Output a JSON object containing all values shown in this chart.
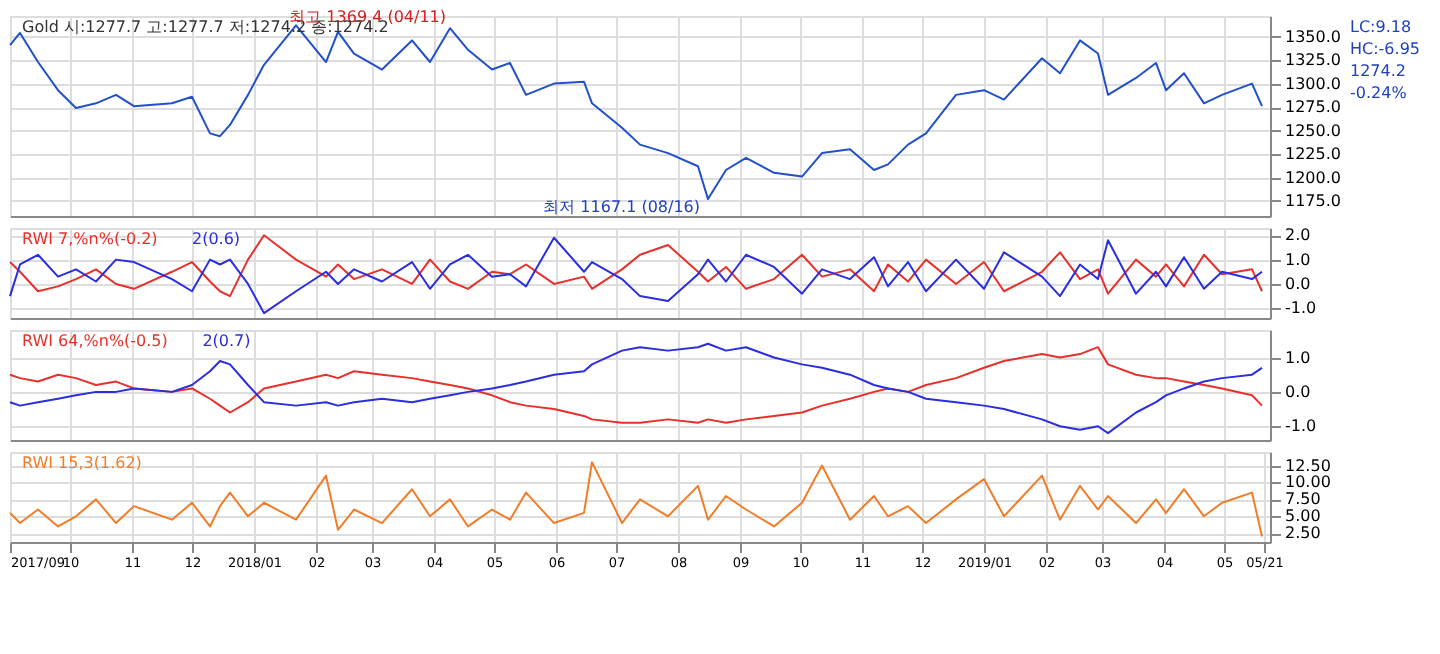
{
  "chart_data": [
    {
      "type": "line",
      "title": "Gold 시:1277.7 고:1277.7 저:1274.2 종:1274.2",
      "grid": true,
      "tick_labels": "y",
      "x": [
        "2017-09-01",
        "2017-09-06",
        "2017-09-15",
        "2017-09-25",
        "2017-10-04",
        "2017-10-14",
        "2017-10-24",
        "2017-11-02",
        "2017-11-21",
        "2017-12-01",
        "2017-12-10",
        "2017-12-15",
        "2017-12-20",
        "2017-12-29",
        "2018-01-06",
        "2018-01-22",
        "2018-02-06",
        "2018-02-12",
        "2018-02-20",
        "2018-03-06",
        "2018-03-21",
        "2018-03-30",
        "2018-04-09",
        "2018-04-18",
        "2018-04-30",
        "2018-05-09",
        "2018-05-17",
        "2018-05-31",
        "2018-06-15",
        "2018-06-19",
        "2018-07-04",
        "2018-07-13",
        "2018-07-27",
        "2018-08-11",
        "2018-08-16",
        "2018-08-25",
        "2018-09-04",
        "2018-09-18",
        "2018-10-02",
        "2018-10-12",
        "2018-10-26",
        "2018-11-07",
        "2018-11-14",
        "2018-11-24",
        "2018-12-03",
        "2018-12-18",
        "2019-01-01",
        "2019-01-11",
        "2019-01-30",
        "2019-02-08",
        "2019-02-18",
        "2019-02-27",
        "2019-03-04",
        "2019-03-18",
        "2019-03-28",
        "2019-04-02",
        "2019-04-11",
        "2019-04-21",
        "2019-04-30",
        "2019-05-15",
        "2019-05-20"
      ],
      "series": [
        {
          "color": "#2150c8",
          "values": [
            1341,
            1354,
            1323,
            1293,
            1274,
            1279,
            1288,
            1276,
            1279,
            1286,
            1247,
            1244,
            1256,
            1288,
            1320,
            1362,
            1323,
            1355,
            1332,
            1315,
            1346,
            1323,
            1359,
            1336,
            1315,
            1322,
            1288,
            1300,
            1302,
            1279,
            1253,
            1235,
            1226,
            1212,
            1177,
            1208,
            1221,
            1205,
            1201,
            1226,
            1230,
            1208,
            1214,
            1235,
            1247,
            1288,
            1293,
            1283,
            1327,
            1311,
            1346,
            1332,
            1288,
            1306,
            1322,
            1293,
            1311,
            1279,
            1288,
            1300,
            1276
          ]
        }
      ],
      "xlim": [
        "2017-09-01",
        "2019-05-24"
      ],
      "xticks": [
        {
          "value": "2017-09-01",
          "label": null
        },
        {
          "value": "2017-10-01",
          "label": null
        },
        {
          "value": "2017-11-01",
          "label": null
        },
        {
          "value": "2017-12-01",
          "label": null
        },
        {
          "value": "2018-01-01",
          "label": null
        },
        {
          "value": "2018-02-01",
          "label": null
        },
        {
          "value": "2018-03-01",
          "label": null
        },
        {
          "value": "2018-04-01",
          "label": null
        },
        {
          "value": "2018-05-01",
          "label": null
        },
        {
          "value": "2018-06-01",
          "label": null
        },
        {
          "value": "2018-07-01",
          "label": null
        },
        {
          "value": "2018-08-01",
          "label": null
        },
        {
          "value": "2018-09-01",
          "label": null
        },
        {
          "value": "2018-10-01",
          "label": null
        },
        {
          "value": "2018-11-01",
          "label": null
        },
        {
          "value": "2018-12-01",
          "label": null
        },
        {
          "value": "2019-01-01",
          "label": null
        },
        {
          "value": "2019-02-01",
          "label": null
        },
        {
          "value": "2019-03-01",
          "label": null
        },
        {
          "value": "2019-04-01",
          "label": null
        },
        {
          "value": "2019-05-01",
          "label": null
        }
      ],
      "ylim": [
        1159,
        1372
      ],
      "yticks": [
        {
          "value": 1175,
          "label": "1175.0"
        },
        {
          "value": 1200,
          "label": "1200.0"
        },
        {
          "value": 1225,
          "label": "1225.0"
        },
        {
          "value": 1250,
          "label": "1250.0"
        },
        {
          "value": 1275,
          "label": "1275.0"
        },
        {
          "value": 1300,
          "label": "1300.0"
        },
        {
          "value": 1325,
          "label": "1325.0"
        },
        {
          "value": 1350,
          "label": "1350.0"
        }
      ],
      "annotations": [
        {
          "text": "최고 1369.4 (04/11)",
          "x": "2018-04-11",
          "y": 1369.4
        },
        {
          "text": "최저 1167.1 (08/16)",
          "x": "2018-08-16",
          "y": 1167.1
        },
        "LC:9.18",
        "HC:-6.95",
        "1274.2",
        "-0.24%"
      ]
    },
    {
      "type": "line",
      "grid": true,
      "tick_labels": "y",
      "x": [
        "2017-09-01",
        "2017-09-06",
        "2017-09-15",
        "2017-09-25",
        "2017-10-04",
        "2017-10-14",
        "2017-10-24",
        "2017-11-02",
        "2017-11-21",
        "2017-12-01",
        "2017-12-10",
        "2017-12-15",
        "2017-12-20",
        "2017-12-29",
        "2018-01-06",
        "2018-01-22",
        "2018-02-06",
        "2018-02-12",
        "2018-02-20",
        "2018-03-06",
        "2018-03-21",
        "2018-03-30",
        "2018-04-09",
        "2018-04-18",
        "2018-04-30",
        "2018-05-09",
        "2018-05-17",
        "2018-05-31",
        "2018-06-15",
        "2018-06-19",
        "2018-07-04",
        "2018-07-13",
        "2018-07-27",
        "2018-08-11",
        "2018-08-16",
        "2018-08-25",
        "2018-09-04",
        "2018-09-18",
        "2018-10-02",
        "2018-10-12",
        "2018-10-26",
        "2018-11-07",
        "2018-11-14",
        "2018-11-24",
        "2018-12-03",
        "2018-12-18",
        "2019-01-01",
        "2019-01-11",
        "2019-01-30",
        "2019-02-08",
        "2019-02-18",
        "2019-02-27",
        "2019-03-04",
        "2019-03-18",
        "2019-03-28",
        "2019-04-02",
        "2019-04-11",
        "2019-04-21",
        "2019-04-30",
        "2019-05-15",
        "2019-05-20"
      ],
      "series": [
        {
          "name": "RWI 7,%n%(-0.2)",
          "color": "#e8302a",
          "values": [
            0.9,
            0.5,
            -0.3,
            -0.1,
            0.2,
            0.6,
            0.0,
            -0.2,
            0.5,
            0.9,
            0.1,
            -0.3,
            -0.5,
            1.0,
            2.0,
            1.0,
            0.3,
            0.8,
            0.2,
            0.6,
            0.0,
            1.0,
            0.1,
            -0.2,
            0.5,
            0.4,
            0.8,
            0.0,
            0.3,
            -0.2,
            0.6,
            1.2,
            1.6,
            0.5,
            0.1,
            0.7,
            -0.2,
            0.2,
            1.2,
            0.3,
            0.6,
            -0.3,
            0.8,
            0.1,
            1.0,
            0.0,
            0.9,
            -0.3,
            0.5,
            1.3,
            0.2,
            0.6,
            -0.4,
            1.0,
            0.3,
            0.8,
            -0.1,
            1.2,
            0.4,
            0.6,
            -0.3
          ]
        },
        {
          "name": "2(0.6)",
          "color": "#2a2ee0",
          "values": [
            -0.5,
            0.8,
            1.2,
            0.3,
            0.6,
            0.1,
            1.0,
            0.9,
            0.2,
            -0.3,
            1.0,
            0.8,
            1.0,
            0.0,
            -1.2,
            -0.3,
            0.5,
            0.0,
            0.6,
            0.1,
            0.9,
            -0.2,
            0.8,
            1.2,
            0.3,
            0.4,
            -0.1,
            1.9,
            0.5,
            0.9,
            0.2,
            -0.5,
            -0.7,
            0.4,
            1.0,
            0.1,
            1.2,
            0.7,
            -0.4,
            0.6,
            0.2,
            1.1,
            -0.1,
            0.9,
            -0.3,
            1.0,
            -0.2,
            1.3,
            0.3,
            -0.5,
            0.8,
            0.2,
            1.8,
            -0.4,
            0.5,
            -0.1,
            1.1,
            -0.2,
            0.5,
            0.2,
            0.5
          ]
        }
      ],
      "xlim": [
        "2017-09-01",
        "2019-05-24"
      ],
      "xticks": [
        {
          "value": "2017-09-01",
          "label": null
        },
        {
          "value": "2017-10-01",
          "label": null
        },
        {
          "value": "2017-11-01",
          "label": null
        },
        {
          "value": "2017-12-01",
          "label": null
        },
        {
          "value": "2018-01-01",
          "label": null
        },
        {
          "value": "2018-02-01",
          "label": null
        },
        {
          "value": "2018-03-01",
          "label": null
        },
        {
          "value": "2018-04-01",
          "label": null
        },
        {
          "value": "2018-05-01",
          "label": null
        },
        {
          "value": "2018-06-01",
          "label": null
        },
        {
          "value": "2018-07-01",
          "label": null
        },
        {
          "value": "2018-08-01",
          "label": null
        },
        {
          "value": "2018-09-01",
          "label": null
        },
        {
          "value": "2018-10-01",
          "label": null
        },
        {
          "value": "2018-11-01",
          "label": null
        },
        {
          "value": "2018-12-01",
          "label": null
        },
        {
          "value": "2019-01-01",
          "label": null
        },
        {
          "value": "2019-02-01",
          "label": null
        },
        {
          "value": "2019-03-01",
          "label": null
        },
        {
          "value": "2019-04-01",
          "label": null
        },
        {
          "value": "2019-05-01",
          "label": null
        }
      ],
      "ylim": [
        -1.4,
        2.3
      ],
      "yticks": [
        {
          "value": -1,
          "label": "-1.0"
        },
        {
          "value": 0,
          "label": "0.0"
        },
        {
          "value": 1,
          "label": "1.0"
        },
        {
          "value": 2,
          "label": "2.0"
        }
      ]
    },
    {
      "type": "line",
      "grid": true,
      "tick_labels": "y",
      "x": [
        "2017-09-01",
        "2017-09-06",
        "2017-09-15",
        "2017-09-25",
        "2017-10-04",
        "2017-10-14",
        "2017-10-24",
        "2017-11-02",
        "2017-11-21",
        "2017-12-01",
        "2017-12-10",
        "2017-12-15",
        "2017-12-20",
        "2017-12-29",
        "2018-01-06",
        "2018-01-22",
        "2018-02-06",
        "2018-02-12",
        "2018-02-20",
        "2018-03-06",
        "2018-03-21",
        "2018-03-30",
        "2018-04-09",
        "2018-04-18",
        "2018-04-30",
        "2018-05-09",
        "2018-05-17",
        "2018-05-31",
        "2018-06-15",
        "2018-06-19",
        "2018-07-04",
        "2018-07-13",
        "2018-07-27",
        "2018-08-11",
        "2018-08-16",
        "2018-08-25",
        "2018-09-04",
        "2018-09-18",
        "2018-10-02",
        "2018-10-12",
        "2018-10-26",
        "2018-11-07",
        "2018-11-14",
        "2018-11-24",
        "2018-12-03",
        "2018-12-18",
        "2019-01-01",
        "2019-01-11",
        "2019-01-30",
        "2019-02-08",
        "2019-02-18",
        "2019-02-27",
        "2019-03-04",
        "2019-03-18",
        "2019-03-28",
        "2019-04-02",
        "2019-04-11",
        "2019-04-21",
        "2019-04-30",
        "2019-05-15",
        "2019-05-20"
      ],
      "series": [
        {
          "name": "RWI 64,%n%(-0.5)",
          "color": "#e8302a",
          "values": [
            0.5,
            0.4,
            0.3,
            0.5,
            0.4,
            0.2,
            0.3,
            0.1,
            0.0,
            0.1,
            -0.2,
            -0.4,
            -0.6,
            -0.3,
            0.1,
            0.3,
            0.5,
            0.4,
            0.6,
            0.5,
            0.4,
            0.3,
            0.2,
            0.1,
            -0.1,
            -0.3,
            -0.4,
            -0.5,
            -0.7,
            -0.8,
            -0.9,
            -0.9,
            -0.8,
            -0.9,
            -0.8,
            -0.9,
            -0.8,
            -0.7,
            -0.6,
            -0.4,
            -0.2,
            0.0,
            0.1,
            0.0,
            0.2,
            0.4,
            0.7,
            0.9,
            1.1,
            1.0,
            1.1,
            1.3,
            0.8,
            0.5,
            0.4,
            0.4,
            0.3,
            0.2,
            0.1,
            -0.1,
            -0.4
          ]
        },
        {
          "name": "2(0.7)",
          "color": "#2a2ee0",
          "values": [
            -0.3,
            -0.4,
            -0.3,
            -0.2,
            -0.1,
            0.0,
            0.0,
            0.1,
            0.0,
            0.2,
            0.6,
            0.9,
            0.8,
            0.2,
            -0.3,
            -0.4,
            -0.3,
            -0.4,
            -0.3,
            -0.2,
            -0.3,
            -0.2,
            -0.1,
            0.0,
            0.1,
            0.2,
            0.3,
            0.5,
            0.6,
            0.8,
            1.2,
            1.3,
            1.2,
            1.3,
            1.4,
            1.2,
            1.3,
            1.0,
            0.8,
            0.7,
            0.5,
            0.2,
            0.1,
            0.0,
            -0.2,
            -0.3,
            -0.4,
            -0.5,
            -0.8,
            -1.0,
            -1.1,
            -1.0,
            -1.2,
            -0.6,
            -0.3,
            -0.1,
            0.1,
            0.3,
            0.4,
            0.5,
            0.7
          ]
        }
      ],
      "xlim": [
        "2017-09-01",
        "2019-05-24"
      ],
      "xticks": [
        {
          "value": "2017-09-01",
          "label": null
        },
        {
          "value": "2017-10-01",
          "label": null
        },
        {
          "value": "2017-11-01",
          "label": null
        },
        {
          "value": "2017-12-01",
          "label": null
        },
        {
          "value": "2018-01-01",
          "label": null
        },
        {
          "value": "2018-02-01",
          "label": null
        },
        {
          "value": "2018-03-01",
          "label": null
        },
        {
          "value": "2018-04-01",
          "label": null
        },
        {
          "value": "2018-05-01",
          "label": null
        },
        {
          "value": "2018-06-01",
          "label": null
        },
        {
          "value": "2018-07-01",
          "label": null
        },
        {
          "value": "2018-08-01",
          "label": null
        },
        {
          "value": "2018-09-01",
          "label": null
        },
        {
          "value": "2018-10-01",
          "label": null
        },
        {
          "value": "2018-11-01",
          "label": null
        },
        {
          "value": "2018-12-01",
          "label": null
        },
        {
          "value": "2019-01-01",
          "label": null
        },
        {
          "value": "2019-02-01",
          "label": null
        },
        {
          "value": "2019-03-01",
          "label": null
        },
        {
          "value": "2019-04-01",
          "label": null
        },
        {
          "value": "2019-05-01",
          "label": null
        }
      ],
      "ylim": [
        -1.4,
        1.8
      ],
      "yticks": [
        {
          "value": -1,
          "label": "-1.0"
        },
        {
          "value": 0,
          "label": "0.0"
        },
        {
          "value": 1,
          "label": "1.0"
        }
      ]
    },
    {
      "type": "line",
      "grid": true,
      "x": [
        "2017-09-01",
        "2017-09-06",
        "2017-09-15",
        "2017-09-25",
        "2017-10-04",
        "2017-10-14",
        "2017-10-24",
        "2017-11-02",
        "2017-11-21",
        "2017-12-01",
        "2017-12-10",
        "2017-12-15",
        "2017-12-20",
        "2017-12-29",
        "2018-01-06",
        "2018-01-22",
        "2018-02-06",
        "2018-02-12",
        "2018-02-20",
        "2018-03-06",
        "2018-03-21",
        "2018-03-30",
        "2018-04-09",
        "2018-04-18",
        "2018-04-30",
        "2018-05-09",
        "2018-05-17",
        "2018-05-31",
        "2018-06-15",
        "2018-06-19",
        "2018-07-04",
        "2018-07-13",
        "2018-07-27",
        "2018-08-11",
        "2018-08-16",
        "2018-08-25",
        "2018-09-04",
        "2018-09-18",
        "2018-10-02",
        "2018-10-12",
        "2018-10-26",
        "2018-11-07",
        "2018-11-14",
        "2018-11-24",
        "2018-12-03",
        "2018-12-18",
        "2019-01-01",
        "2019-01-11",
        "2019-01-30",
        "2019-02-08",
        "2019-02-18",
        "2019-02-27",
        "2019-03-04",
        "2019-03-18",
        "2019-03-28",
        "2019-04-02",
        "2019-04-11",
        "2019-04-21",
        "2019-04-30",
        "2019-05-15",
        "2019-05-20"
      ],
      "series": [
        {
          "name": "RWI 15,3(1.62)",
          "color": "#f07d28",
          "values": [
            5.5,
            4.0,
            6.0,
            3.5,
            5.0,
            7.5,
            4.0,
            6.5,
            4.5,
            7.0,
            3.5,
            6.5,
            8.5,
            5.0,
            7.0,
            4.5,
            11.0,
            3.0,
            6.0,
            4.0,
            9.0,
            5.0,
            7.5,
            3.5,
            6.0,
            4.5,
            8.5,
            4.0,
            5.5,
            13.0,
            4.0,
            7.5,
            5.0,
            9.5,
            4.5,
            8.0,
            6.0,
            3.5,
            7.0,
            12.5,
            4.5,
            8.0,
            5.0,
            6.5,
            4.0,
            7.5,
            10.5,
            5.0,
            11.0,
            4.5,
            9.5,
            6.0,
            8.0,
            4.0,
            7.5,
            5.5,
            9.0,
            5.0,
            7.0,
            8.5,
            2.0
          ]
        }
      ],
      "xlim": [
        "2017-09-01",
        "2019-05-24"
      ],
      "xticks": [
        {
          "value": "2017-09-01",
          "label": "2017/09"
        },
        {
          "value": "2017-10-01",
          "label": "10"
        },
        {
          "value": "2017-11-01",
          "label": "11"
        },
        {
          "value": "2017-12-01",
          "label": "12"
        },
        {
          "value": "2018-01-01",
          "label": "2018/01"
        },
        {
          "value": "2018-02-01",
          "label": "02"
        },
        {
          "value": "2018-03-01",
          "label": "03"
        },
        {
          "value": "2018-04-01",
          "label": "04"
        },
        {
          "value": "2018-05-01",
          "label": "05"
        },
        {
          "value": "2018-06-01",
          "label": "06"
        },
        {
          "value": "2018-07-01",
          "label": "07"
        },
        {
          "value": "2018-08-01",
          "label": "08"
        },
        {
          "value": "2018-09-01",
          "label": "09"
        },
        {
          "value": "2018-10-01",
          "label": "10"
        },
        {
          "value": "2018-11-01",
          "label": "11"
        },
        {
          "value": "2018-12-01",
          "label": "12"
        },
        {
          "value": "2019-01-01",
          "label": "2019/01"
        },
        {
          "value": "2019-02-01",
          "label": "02"
        },
        {
          "value": "2019-03-01",
          "label": "03"
        },
        {
          "value": "2019-04-01",
          "label": "04"
        },
        {
          "value": "2019-05-01",
          "label": "05"
        },
        {
          "value": "2019-05-21",
          "label": "05/21"
        }
      ],
      "ylim": [
        1.2,
        14.5
      ],
      "yticks": [
        {
          "value": 2.5,
          "label": "2.50"
        },
        {
          "value": 5,
          "label": "5.00"
        },
        {
          "value": 7.5,
          "label": "7.50"
        },
        {
          "value": 10,
          "label": "10.00"
        },
        {
          "value": 12.5,
          "label": "12.50"
        }
      ]
    }
  ]
}
